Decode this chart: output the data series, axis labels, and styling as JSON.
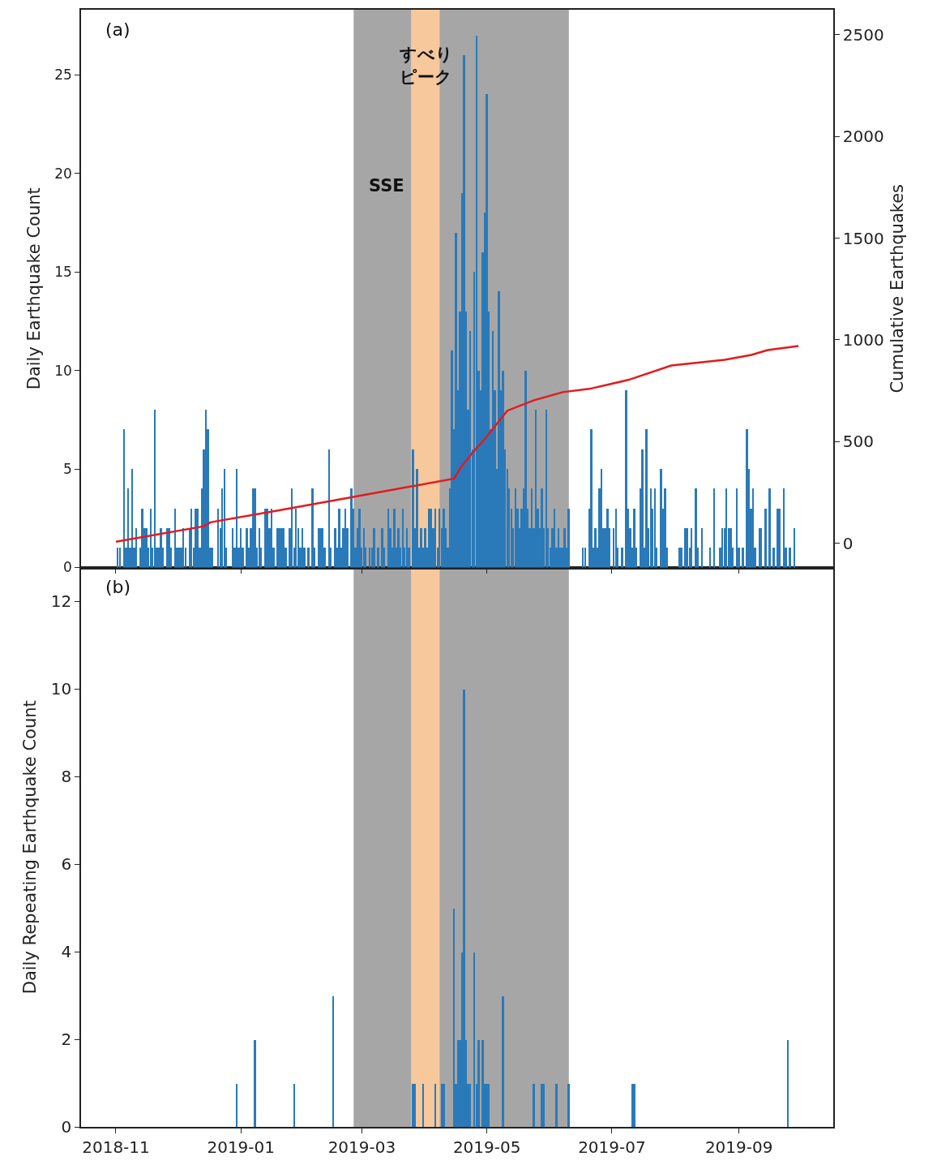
{
  "chart_data": [
    {
      "type": "bar",
      "ylabel": "Daily Earthquake Count",
      "y2label": "Cumulative Earthquakes",
      "annotations": [
        "(a)",
        "すべり",
        "ピーク",
        "SSE"
      ],
      "xlim": [
        "2018-10-15",
        "2019-10-17"
      ],
      "tick_labels": "y",
      "ylim": [
        0,
        28.3
      ],
      "yticks": [
        0,
        5,
        10,
        15,
        20,
        25
      ],
      "y2lim": [
        -119,
        2623
      ],
      "y2ticks": [
        0,
        500,
        1000,
        1500,
        2000,
        2500
      ],
      "grid": false,
      "bands": [
        {
          "axis": "x",
          "from": "2019-02-25",
          "to": "2019-06-10",
          "color": "#a6a6a6"
        },
        {
          "axis": "x",
          "from": "2019-03-25",
          "to": "2019-04-08",
          "color": "#f7c89b"
        }
      ],
      "series": [
        {
          "color": "#2a7ab9",
          "x": [
            "2018-11-02",
            "2018-11-03",
            "2018-11-05",
            "2018-11-06",
            "2018-11-07",
            "2018-11-08",
            "2018-11-09",
            "2018-11-10",
            "2018-11-11",
            "2018-11-13",
            "2018-11-14",
            "2018-11-15",
            "2018-11-16",
            "2018-11-17",
            "2018-11-18",
            "2018-11-19",
            "2018-11-20",
            "2018-11-21",
            "2018-11-22",
            "2018-11-23",
            "2018-11-24",
            "2018-11-26",
            "2018-11-27",
            "2018-11-28",
            "2018-11-30",
            "2018-12-01",
            "2018-12-02",
            "2018-12-03",
            "2018-12-04",
            "2018-12-05",
            "2018-12-07",
            "2018-12-08",
            "2018-12-09",
            "2018-12-10",
            "2018-12-11",
            "2018-12-12",
            "2018-12-13",
            "2018-12-14",
            "2018-12-15",
            "2018-12-16",
            "2018-12-17",
            "2018-12-18",
            "2018-12-21",
            "2018-12-22",
            "2018-12-23",
            "2018-12-24",
            "2018-12-25",
            "2018-12-28",
            "2018-12-29",
            "2018-12-30",
            "2018-12-31",
            "2019-01-01",
            "2019-01-02",
            "2019-01-04",
            "2019-01-05",
            "2019-01-06",
            "2019-01-07",
            "2019-01-08",
            "2019-01-09",
            "2019-01-10",
            "2019-01-11",
            "2019-01-13",
            "2019-01-14",
            "2019-01-15",
            "2019-01-16",
            "2019-01-17",
            "2019-01-19",
            "2019-01-20",
            "2019-01-21",
            "2019-01-22",
            "2019-01-23",
            "2019-01-25",
            "2019-01-26",
            "2019-01-27",
            "2019-01-28",
            "2019-01-29",
            "2019-01-30",
            "2019-01-31",
            "2019-02-01",
            "2019-02-03",
            "2019-02-05",
            "2019-02-06",
            "2019-02-08",
            "2019-02-09",
            "2019-02-10",
            "2019-02-11",
            "2019-02-13",
            "2019-02-14",
            "2019-02-16",
            "2019-02-17",
            "2019-02-18",
            "2019-02-19",
            "2019-02-20",
            "2019-02-21",
            "2019-02-22",
            "2019-02-24",
            "2019-02-25",
            "2019-02-26",
            "2019-02-27",
            "2019-02-28",
            "2019-03-01",
            "2019-03-02",
            "2019-03-03",
            "2019-03-05",
            "2019-03-06",
            "2019-03-07",
            "2019-03-09",
            "2019-03-11",
            "2019-03-12",
            "2019-03-14",
            "2019-03-15",
            "2019-03-16",
            "2019-03-17",
            "2019-03-18",
            "2019-03-19",
            "2019-03-20",
            "2019-03-21",
            "2019-03-22",
            "2019-03-23",
            "2019-03-24",
            "2019-03-26",
            "2019-03-27",
            "2019-03-28",
            "2019-03-29",
            "2019-03-30",
            "2019-03-31",
            "2019-04-01",
            "2019-04-02",
            "2019-04-03",
            "2019-04-04",
            "2019-04-05",
            "2019-04-06",
            "2019-04-07",
            "2019-04-08",
            "2019-04-09",
            "2019-04-10",
            "2019-04-11",
            "2019-04-12",
            "2019-04-13",
            "2019-04-14",
            "2019-04-15",
            "2019-04-16",
            "2019-04-17",
            "2019-04-18",
            "2019-04-19",
            "2019-04-20",
            "2019-04-21",
            "2019-04-22",
            "2019-04-23",
            "2019-04-24",
            "2019-04-25",
            "2019-04-26",
            "2019-04-27",
            "2019-04-28",
            "2019-04-29",
            "2019-04-30",
            "2019-05-01",
            "2019-05-02",
            "2019-05-03",
            "2019-05-04",
            "2019-05-05",
            "2019-05-06",
            "2019-05-07",
            "2019-05-08",
            "2019-05-09",
            "2019-05-10",
            "2019-05-11",
            "2019-05-12",
            "2019-05-13",
            "2019-05-14",
            "2019-05-15",
            "2019-05-16",
            "2019-05-17",
            "2019-05-18",
            "2019-05-19",
            "2019-05-20",
            "2019-05-21",
            "2019-05-22",
            "2019-05-23",
            "2019-05-24",
            "2019-05-25",
            "2019-05-26",
            "2019-05-27",
            "2019-05-28",
            "2019-05-29",
            "2019-05-30",
            "2019-05-31",
            "2019-06-01",
            "2019-06-02",
            "2019-06-03",
            "2019-06-04",
            "2019-06-05",
            "2019-06-06",
            "2019-06-07",
            "2019-06-08",
            "2019-06-09",
            "2019-06-10",
            "2019-06-17",
            "2019-06-18",
            "2019-06-20",
            "2019-06-21",
            "2019-06-22",
            "2019-06-23",
            "2019-06-24",
            "2019-06-25",
            "2019-06-26",
            "2019-06-27",
            "2019-06-28",
            "2019-06-29",
            "2019-06-30",
            "2019-07-02",
            "2019-07-03",
            "2019-07-04",
            "2019-07-06",
            "2019-07-08",
            "2019-07-09",
            "2019-07-10",
            "2019-07-11",
            "2019-07-12",
            "2019-07-13",
            "2019-07-15",
            "2019-07-16",
            "2019-07-17",
            "2019-07-18",
            "2019-07-19",
            "2019-07-20",
            "2019-07-21",
            "2019-07-22",
            "2019-07-23",
            "2019-07-25",
            "2019-07-26",
            "2019-07-27",
            "2019-07-28",
            "2019-08-03",
            "2019-08-04",
            "2019-08-06",
            "2019-08-07",
            "2019-08-08",
            "2019-08-09",
            "2019-08-11",
            "2019-08-12",
            "2019-08-14",
            "2019-08-18",
            "2019-08-20",
            "2019-08-23",
            "2019-08-24",
            "2019-08-25",
            "2019-08-26",
            "2019-08-27",
            "2019-08-28",
            "2019-08-29",
            "2019-08-31",
            "2019-09-01",
            "2019-09-03",
            "2019-09-05",
            "2019-09-06",
            "2019-09-07",
            "2019-09-08",
            "2019-09-09",
            "2019-09-11",
            "2019-09-12",
            "2019-09-14",
            "2019-09-16",
            "2019-09-18",
            "2019-09-20",
            "2019-09-21",
            "2019-09-23",
            "2019-09-24",
            "2019-09-26",
            "2019-09-28"
          ],
          "values": [
            1,
            1,
            7,
            1,
            4,
            1,
            5,
            1,
            2,
            1,
            3,
            2,
            2,
            1,
            3,
            1,
            8,
            1,
            1,
            2,
            1,
            2,
            2,
            1,
            3,
            1,
            1,
            1,
            2,
            1,
            2,
            3,
            1,
            3,
            3,
            1,
            4,
            6,
            8,
            7,
            1,
            1,
            3,
            2,
            4,
            5,
            1,
            2,
            1,
            5,
            1,
            2,
            1,
            2,
            1,
            2,
            4,
            4,
            1,
            2,
            1,
            3,
            3,
            2,
            3,
            1,
            2,
            2,
            2,
            2,
            1,
            2,
            4,
            1,
            3,
            2,
            1,
            2,
            1,
            1,
            4,
            1,
            2,
            2,
            2,
            1,
            6,
            1,
            2,
            1,
            3,
            1,
            2,
            3,
            2,
            4,
            3,
            1,
            2,
            3,
            1,
            2,
            1,
            1,
            1,
            2,
            1,
            2,
            1,
            3,
            2,
            1,
            3,
            1,
            2,
            1,
            3,
            1,
            2,
            1,
            6,
            2,
            5,
            1,
            2,
            1,
            2,
            1,
            3,
            3,
            2,
            3,
            1,
            3,
            2,
            3,
            2,
            1,
            4,
            11,
            7,
            17,
            9,
            13,
            19,
            26,
            13,
            8,
            12,
            6,
            15,
            27,
            10,
            9,
            16,
            18,
            24,
            13,
            7,
            12,
            9,
            5,
            14,
            9,
            10,
            6,
            5,
            4,
            3,
            2,
            4,
            3,
            2,
            3,
            4,
            10,
            3,
            2,
            4,
            2,
            8,
            3,
            2,
            4,
            2,
            8,
            2,
            1,
            2,
            3,
            1,
            2,
            1,
            1,
            2,
            1,
            3,
            1,
            1,
            3,
            7,
            1,
            2,
            1,
            4,
            5,
            2,
            2,
            3,
            2,
            2,
            3,
            1,
            1,
            9,
            3,
            2,
            1,
            3,
            1,
            4,
            6,
            1,
            7,
            2,
            4,
            3,
            4,
            1,
            5,
            3,
            4,
            1,
            1,
            1,
            2,
            2,
            1,
            2,
            4,
            1,
            2,
            1,
            4,
            1,
            2,
            2,
            4,
            2,
            2,
            1,
            4,
            1,
            1,
            7,
            5,
            3,
            4,
            1,
            2,
            2,
            3,
            4,
            1,
            3,
            3,
            4,
            1,
            1,
            2
          ]
        },
        {
          "type": "line",
          "axis": "y2",
          "color": "#e31a1c",
          "x": [
            "2018-11-01",
            "2018-12-14",
            "2018-12-17",
            "2019-01-18",
            "2019-02-26",
            "2019-04-15",
            "2019-04-18",
            "2019-04-24",
            "2019-04-30",
            "2019-05-11",
            "2019-05-24",
            "2019-06-07",
            "2019-06-20",
            "2019-07-09",
            "2019-07-30",
            "2019-08-25",
            "2019-09-07",
            "2019-09-15",
            "2019-09-30"
          ],
          "values": [
            8,
            84,
            103,
            159,
            230,
            318,
            370,
            445,
            513,
            652,
            703,
            743,
            759,
            803,
            874,
            902,
            926,
            950,
            970
          ]
        }
      ]
    },
    {
      "type": "bar",
      "ylabel": "Daily Repeating Earthquake Count",
      "annotations": [
        "(b)"
      ],
      "xlim": [
        "2018-10-15",
        "2019-10-17"
      ],
      "xticks": [
        {
          "value": "2018-11-01",
          "label": "2018-11"
        },
        {
          "value": "2019-01-01",
          "label": "2019-01"
        },
        {
          "value": "2019-03-01",
          "label": "2019-03"
        },
        {
          "value": "2019-05-01",
          "label": "2019-05"
        },
        {
          "value": "2019-07-01",
          "label": "2019-07"
        },
        {
          "value": "2019-09-01",
          "label": "2019-09"
        }
      ],
      "ylim": [
        0,
        12.77
      ],
      "yticks": [
        0,
        2,
        4,
        6,
        8,
        10,
        12
      ],
      "grid": false,
      "bands": [
        {
          "axis": "x",
          "from": "2019-02-25",
          "to": "2019-06-10",
          "color": "#a6a6a6"
        },
        {
          "axis": "x",
          "from": "2019-03-25",
          "to": "2019-04-08",
          "color": "#f7c89b"
        }
      ],
      "series": [
        {
          "color": "#2a7ab9",
          "x": [
            "2018-12-30",
            "2019-01-08",
            "2019-01-27",
            "2019-02-15",
            "2019-03-26",
            "2019-03-27",
            "2019-03-31",
            "2019-04-06",
            "2019-04-09",
            "2019-04-10",
            "2019-04-15",
            "2019-04-16",
            "2019-04-17",
            "2019-04-18",
            "2019-04-19",
            "2019-04-20",
            "2019-04-21",
            "2019-04-22",
            "2019-04-23",
            "2019-04-25",
            "2019-04-26",
            "2019-04-27",
            "2019-04-29",
            "2019-04-30",
            "2019-05-01",
            "2019-05-02",
            "2019-05-09",
            "2019-05-24",
            "2019-05-28",
            "2019-05-29",
            "2019-06-04",
            "2019-06-10",
            "2019-07-11",
            "2019-07-12",
            "2019-09-25"
          ],
          "values": [
            1,
            2,
            1,
            3,
            1,
            1,
            1,
            1,
            1,
            1,
            5,
            1,
            2,
            2,
            4,
            10,
            2,
            1,
            1,
            4,
            1,
            2,
            2,
            1,
            1,
            1,
            3,
            1,
            1,
            1,
            1,
            1,
            1,
            1,
            2
          ]
        }
      ]
    }
  ]
}
